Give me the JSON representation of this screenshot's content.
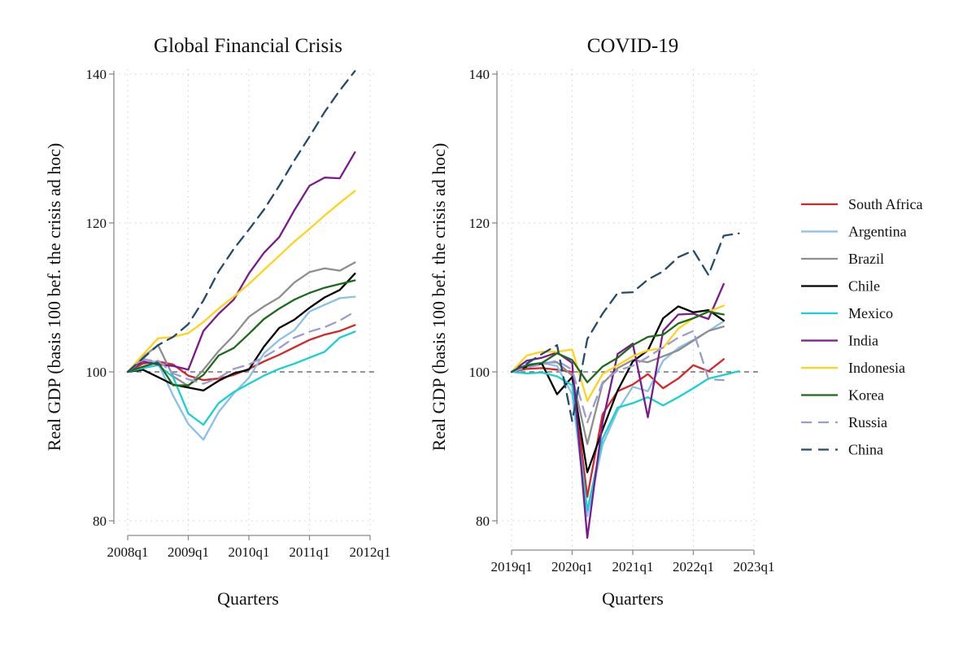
{
  "chart_data": [
    {
      "type": "line",
      "title": "Global Financial Crisis",
      "xlabel": "Quarters",
      "ylabel": "Real GDP (basis 100 bef. the crisis ad hoc)",
      "x_ticks": [
        "2008q1",
        "2009q1",
        "2010q1",
        "2011q1",
        "2012q1"
      ],
      "y_ticks": [
        80,
        100,
        120,
        140
      ],
      "xlim": [
        0,
        16
      ],
      "ylim": [
        80,
        140
      ],
      "grid": true,
      "reference_line": 100,
      "x": [
        "2008q1",
        "2008q2",
        "2008q3",
        "2008q4",
        "2009q1",
        "2009q2",
        "2009q3",
        "2009q4",
        "2010q1",
        "2010q2",
        "2010q3",
        "2010q4",
        "2011q1",
        "2011q2",
        "2011q3",
        "2011q4"
      ],
      "series": [
        {
          "name": "South Africa",
          "values": [
            100,
            101.1,
            101.4,
            101.0,
            99.5,
            98.9,
            99.1,
            99.6,
            100.4,
            101.4,
            102.3,
            103.3,
            104.3,
            105.0,
            105.5,
            106.3
          ]
        },
        {
          "name": "Argentina",
          "values": [
            100,
            101.8,
            101.2,
            96.8,
            93.0,
            90.9,
            94.6,
            97.1,
            99.2,
            102.5,
            104.3,
            105.6,
            108.1,
            109.0,
            109.9,
            110.1
          ]
        },
        {
          "name": "Brazil",
          "values": [
            100,
            102.0,
            103.6,
            99.4,
            98.1,
            100.3,
            102.8,
            104.9,
            107.4,
            108.8,
            110.0,
            112.0,
            113.4,
            113.9,
            113.6,
            114.7
          ]
        },
        {
          "name": "Chile",
          "values": [
            100,
            100.3,
            99.3,
            98.3,
            97.9,
            97.5,
            98.8,
            99.8,
            100.3,
            103.4,
            105.9,
            107.0,
            108.6,
            110.0,
            111.0,
            113.2
          ]
        },
        {
          "name": "Mexico",
          "values": [
            100,
            100.5,
            100.9,
            99.3,
            94.4,
            92.9,
            95.8,
            97.3,
            98.4,
            99.5,
            100.4,
            101.1,
            101.9,
            102.7,
            104.6,
            105.4
          ]
        },
        {
          "name": "India",
          "values": [
            100,
            101.4,
            101.0,
            100.8,
            100.3,
            105.5,
            107.8,
            109.7,
            113.2,
            116.0,
            118.1,
            121.7,
            125.0,
            126.1,
            126.0,
            129.5
          ]
        },
        {
          "name": "Indonesia",
          "values": [
            100,
            102.3,
            104.5,
            104.7,
            105.2,
            106.7,
            108.5,
            110.1,
            111.8,
            113.7,
            115.6,
            117.5,
            119.2,
            121.0,
            122.7,
            124.3
          ]
        },
        {
          "name": "Korea",
          "values": [
            100,
            100.7,
            101.3,
            98.2,
            98.2,
            99.6,
            102.2,
            103.2,
            105.1,
            107.1,
            108.5,
            109.7,
            110.6,
            111.3,
            111.8,
            112.3
          ]
        },
        {
          "name": "Russia",
          "values": [
            100,
            101.6,
            101.5,
            99.8,
            99.0,
            98.4,
            99.2,
            100.4,
            101.0,
            102.0,
            103.2,
            104.6,
            105.4,
            106.0,
            106.9,
            108.1
          ]
        },
        {
          "name": "China",
          "values": [
            100,
            101.8,
            103.6,
            104.7,
            106.4,
            109.6,
            113.5,
            116.5,
            119.1,
            121.8,
            125.0,
            128.4,
            131.6,
            134.9,
            137.8,
            140.4
          ]
        }
      ]
    },
    {
      "type": "line",
      "title": "COVID-19",
      "xlabel": "Quarters",
      "ylabel": "Real GDP (basis 100 bef. the crisis ad hoc)",
      "x_ticks": [
        "2019q1",
        "2020q1",
        "2021q1",
        "2022q1",
        "2023q1"
      ],
      "y_ticks": [
        80,
        100,
        120,
        140
      ],
      "xlim": [
        0,
        16
      ],
      "ylim": [
        80,
        140
      ],
      "grid": true,
      "reference_line": 100,
      "x": [
        "2019q1",
        "2019q2",
        "2019q3",
        "2019q4",
        "2020q1",
        "2020q2",
        "2020q3",
        "2020q4",
        "2021q1",
        "2021q2",
        "2021q3",
        "2021q4",
        "2022q1",
        "2022q2",
        "2022q3",
        "2022q4"
      ],
      "series": [
        {
          "name": "South Africa",
          "values": [
            100,
            100.4,
            100.5,
            100.3,
            100.0,
            83.2,
            94.3,
            97.4,
            98.3,
            99.7,
            97.8,
            99.1,
            100.9,
            100.1,
            101.7,
            null
          ]
        },
        {
          "name": "Argentina",
          "values": [
            100,
            101.0,
            101.2,
            100.8,
            97.0,
            80.6,
            90.2,
            94.8,
            98.0,
            97.4,
            101.5,
            103.2,
            104.3,
            105.5,
            106.8,
            null
          ]
        },
        {
          "name": "Brazil",
          "values": [
            100,
            100.7,
            101.2,
            101.3,
            99.5,
            90.3,
            98.4,
            100.5,
            101.6,
            101.3,
            102.1,
            102.9,
            104.2,
            105.5,
            106.1,
            null
          ]
        },
        {
          "name": "Chile",
          "values": [
            100,
            100.7,
            101.1,
            97.0,
            99.3,
            86.5,
            92.2,
            97.5,
            101.4,
            102.9,
            107.2,
            108.8,
            108.0,
            108.3,
            106.9,
            null
          ]
        },
        {
          "name": "Mexico",
          "values": [
            100,
            99.8,
            99.9,
            99.4,
            98.2,
            81.4,
            91.0,
            95.2,
            95.8,
            96.6,
            95.5,
            96.6,
            97.8,
            99.1,
            99.6,
            100.1
          ]
        },
        {
          "name": "India",
          "values": [
            100,
            101.5,
            101.9,
            102.6,
            101.2,
            77.7,
            93.2,
            102.4,
            103.8,
            93.9,
            105.5,
            107.7,
            107.8,
            107.1,
            111.8,
            null
          ]
        },
        {
          "name": "Indonesia",
          "values": [
            100,
            102.2,
            102.7,
            102.7,
            103.0,
            96.1,
            99.7,
            100.9,
            102.1,
            102.9,
            103.2,
            105.8,
            107.2,
            108.1,
            108.9,
            null
          ]
        },
        {
          "name": "Korea",
          "values": [
            100,
            100.9,
            101.2,
            102.5,
            101.6,
            98.6,
            100.7,
            101.9,
            103.6,
            104.7,
            105.0,
            106.5,
            107.2,
            108.1,
            107.7,
            null
          ]
        },
        {
          "name": "Russia",
          "values": [
            100,
            100.6,
            101.0,
            101.5,
            100.3,
            93.2,
            98.6,
            100.2,
            100.8,
            102.0,
            103.3,
            104.6,
            105.5,
            99.0,
            98.9,
            null
          ]
        },
        {
          "name": "China",
          "values": [
            100,
            101.1,
            102.4,
            103.6,
            93.4,
            104.4,
            107.8,
            110.6,
            110.7,
            112.4,
            113.5,
            115.4,
            116.3,
            113.0,
            118.3,
            118.6
          ]
        }
      ]
    }
  ],
  "legend": {
    "placement": "right",
    "items": [
      {
        "name": "South Africa",
        "color": "#d62728",
        "dash": "solid"
      },
      {
        "name": "Argentina",
        "color": "#87c1e9",
        "dash": "solid"
      },
      {
        "name": "Brazil",
        "color": "#8e8e8e",
        "dash": "solid"
      },
      {
        "name": "Chile",
        "color": "#000000",
        "dash": "solid"
      },
      {
        "name": "Mexico",
        "color": "#17d1d1",
        "dash": "solid"
      },
      {
        "name": "India",
        "color": "#7b1a8c",
        "dash": "solid"
      },
      {
        "name": "Indonesia",
        "color": "#ffd31a",
        "dash": "solid"
      },
      {
        "name": "Korea",
        "color": "#1b6b1b",
        "dash": "solid"
      },
      {
        "name": "Russia",
        "color": "#9b9bd0",
        "dash": "dashed"
      },
      {
        "name": "China",
        "color": "#234b6b",
        "dash": "dashed"
      }
    ]
  }
}
